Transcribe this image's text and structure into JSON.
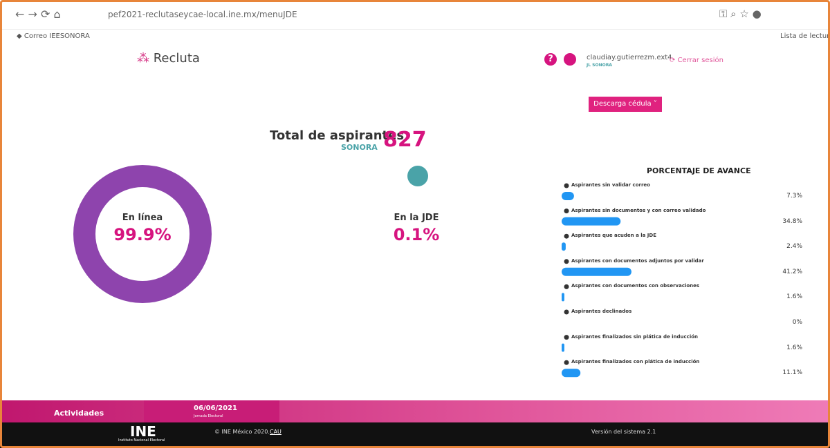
{
  "browser": {
    "url": "pef2021-reclutaseycae-local.ine.mx/menuJDE",
    "bookmark": "Correo IEESONORA",
    "reading_list": "Lista de lectura"
  },
  "header": {
    "brand": "Recluta",
    "user": "claudiay.gutierrezm.ext4",
    "role": "JL SONORA",
    "logout": "Cerrar sesión",
    "download": "Descarga cédula"
  },
  "summary": {
    "label": "Total de aspirantes",
    "state": "SONORA",
    "total": 827
  },
  "donut": {
    "labels": [
      "En línea",
      "En la JDE"
    ],
    "values": [
      99.9,
      0.1
    ],
    "value_labels": [
      "99.9%",
      "0.1%"
    ],
    "colors": [
      "#8e44ad",
      "#4aa3a8"
    ]
  },
  "progress": {
    "title": "PORCENTAJE DE AVANCE",
    "color": "#2196f3",
    "categories": [
      "Aspirantes sin validar correo",
      "Aspirantes sin documentos y con correo validado",
      "Aspirantes que acuden a la JDE",
      "Aspirantes con documentos adjuntos por validar",
      "Aspirantes con documentos con observaciones",
      "Aspirantes declinados",
      "Aspirantes finalizados sin plática de inducción",
      "Aspirantes finalizados con plática de inducción"
    ],
    "values": [
      7.3,
      34.8,
      2.4,
      41.2,
      1.6,
      0,
      1.6,
      11.1
    ],
    "value_labels": [
      "7.3%",
      "34.8%",
      "2.4%",
      "41.2%",
      "1.6%",
      "0%",
      "1.6%",
      "11.1%"
    ]
  },
  "footer": {
    "activities": "Actividades",
    "date": "06/06/2021",
    "date_caption": "Jornada Electoral",
    "logo": "INE",
    "logo_caption": "Instituto Nacional Electoral",
    "copyright": "© INE México 2020.",
    "cau": "CAU",
    "version": "Versión del sistema 2.1"
  }
}
